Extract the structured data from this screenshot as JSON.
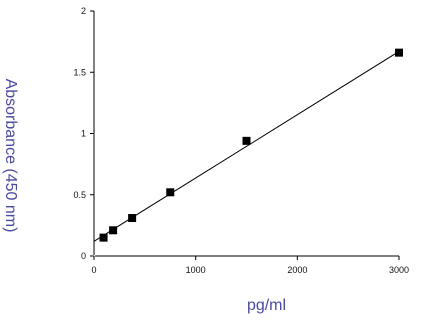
{
  "chart_data": {
    "type": "scatter",
    "xlabel": "pg/ml",
    "ylabel": "Absorbance (450 nm)",
    "xlim": [
      0,
      3000
    ],
    "ylim": [
      0,
      2
    ],
    "x_ticks": [
      0,
      1000,
      2000,
      3000
    ],
    "y_ticks": [
      0,
      0.5,
      1,
      1.5,
      2
    ],
    "x_tick_labels": [
      "0",
      "1000",
      "2000",
      "3000"
    ],
    "y_tick_labels": [
      "0",
      "0.5",
      "1",
      "1.5",
      "2"
    ],
    "grid": false,
    "series": [
      {
        "points": [
          {
            "x": 94,
            "y": 0.15
          },
          {
            "x": 188,
            "y": 0.21
          },
          {
            "x": 375,
            "y": 0.31
          },
          {
            "x": 750,
            "y": 0.52
          },
          {
            "x": 1500,
            "y": 0.94
          },
          {
            "x": 3000,
            "y": 1.66
          }
        ]
      }
    ],
    "fit_line": {
      "x": [
        0,
        3000
      ],
      "y": [
        0.12,
        1.67
      ]
    }
  }
}
